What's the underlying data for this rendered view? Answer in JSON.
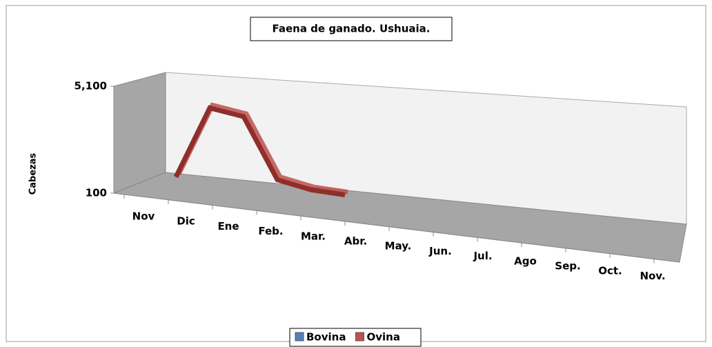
{
  "chart_data": {
    "type": "line3d",
    "title": "Faena de ganado. Ushuaia.",
    "y_label": "Cabezas",
    "categories": [
      "Nov",
      "Dic",
      "Ene",
      "Feb.",
      "Mar.",
      "Abr.",
      "May.",
      "Jun.",
      "Jul.",
      "Ago",
      "Sep.",
      "Oct.",
      "Nov."
    ],
    "series": [
      {
        "name": "Bovina",
        "color": "#4f81bd",
        "values": [
          null,
          null,
          null,
          null,
          null,
          null,
          null,
          null,
          null,
          null,
          null,
          null,
          null
        ]
      },
      {
        "name": "Ovina",
        "color": "#c0504d",
        "values": [
          150,
          3600,
          3350,
          500,
          180,
          100,
          null,
          null,
          null,
          null,
          null,
          null,
          null
        ]
      }
    ],
    "ylim": [
      100,
      5100
    ],
    "yticks": [
      100,
      {
        "value": 5100,
        "label": "5,100"
      }
    ],
    "legend": "bottom"
  }
}
